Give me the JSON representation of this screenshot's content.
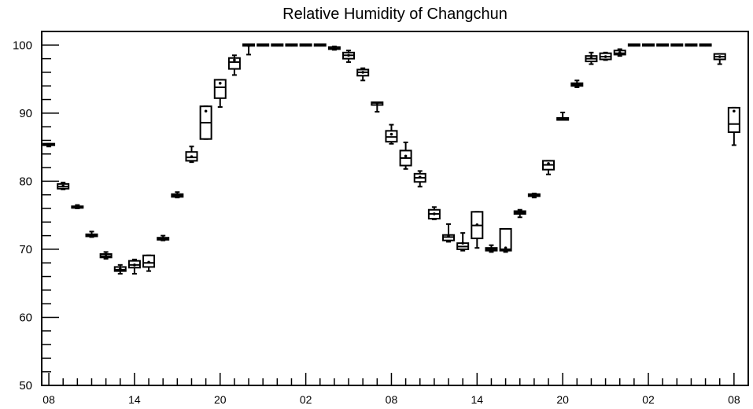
{
  "chart_data": {
    "type": "box",
    "title": "Relative Humidity of Changchun",
    "xlabel": "",
    "ylabel": "",
    "ylim": [
      50,
      102
    ],
    "y_ticks": [
      50,
      60,
      70,
      80,
      90,
      100
    ],
    "x_tick_labels": [
      "08",
      "14",
      "20",
      "02",
      "08",
      "14",
      "20",
      "02",
      "08"
    ],
    "x_tick_hours": [
      0,
      6,
      12,
      18,
      24,
      30,
      36,
      42,
      48
    ],
    "grid": false,
    "legend": "none",
    "boxes": [
      {
        "hour": 0,
        "whisker_low": 85.1,
        "q1": 85.2,
        "median": 85.3,
        "q3": 85.4,
        "whisker_high": 85.5,
        "mean": 85.3
      },
      {
        "hour": 1,
        "whisker_low": 78.8,
        "q1": 78.9,
        "median": 79.2,
        "q3": 79.6,
        "whisker_high": 79.8,
        "mean": 79.3
      },
      {
        "hour": 2,
        "whisker_low": 76.0,
        "q1": 76.0,
        "median": 76.1,
        "q3": 76.2,
        "whisker_high": 76.5,
        "mean": 76.1
      },
      {
        "hour": 3,
        "whisker_low": 71.8,
        "q1": 71.9,
        "median": 72.0,
        "q3": 72.2,
        "whisker_high": 72.6,
        "mean": 72.1
      },
      {
        "hour": 4,
        "whisker_low": 68.6,
        "q1": 68.8,
        "median": 69.0,
        "q3": 69.3,
        "whisker_high": 69.6,
        "mean": 69.0
      },
      {
        "hour": 5,
        "whisker_low": 66.4,
        "q1": 66.8,
        "median": 67.0,
        "q3": 67.4,
        "whisker_high": 67.7,
        "mean": 67.1
      },
      {
        "hour": 6,
        "whisker_low": 66.4,
        "q1": 67.3,
        "median": 67.7,
        "q3": 68.3,
        "whisker_high": 68.5,
        "mean": 67.7
      },
      {
        "hour": 7,
        "whisker_low": 66.8,
        "q1": 67.4,
        "median": 68.0,
        "q3": 69.1,
        "whisker_high": 69.1,
        "mean": 68.1
      },
      {
        "hour": 8,
        "whisker_low": 71.3,
        "q1": 71.4,
        "median": 71.6,
        "q3": 71.7,
        "whisker_high": 72.0,
        "mean": 71.6
      },
      {
        "hour": 9,
        "whisker_low": 77.6,
        "q1": 77.7,
        "median": 77.9,
        "q3": 78.1,
        "whisker_high": 78.4,
        "mean": 78.0
      },
      {
        "hour": 10,
        "whisker_low": 82.8,
        "q1": 83.0,
        "median": 83.5,
        "q3": 84.3,
        "whisker_high": 85.1,
        "mean": 83.6
      },
      {
        "hour": 11,
        "whisker_low": 86.2,
        "q1": 86.2,
        "median": 88.6,
        "q3": 91.0,
        "whisker_high": 91.0,
        "mean": 90.3
      },
      {
        "hour": 12,
        "whisker_low": 90.9,
        "q1": 92.2,
        "median": 93.8,
        "q3": 94.9,
        "whisker_high": 94.9,
        "mean": 94.4
      },
      {
        "hour": 13,
        "whisker_low": 95.6,
        "q1": 96.5,
        "median": 97.5,
        "q3": 98.1,
        "whisker_high": 98.5,
        "mean": 97.8
      },
      {
        "hour": 14,
        "whisker_low": 98.6,
        "q1": 99.8,
        "median": 100.0,
        "q3": 100.0,
        "whisker_high": 100.0,
        "mean": 99.9
      },
      {
        "hour": 15,
        "whisker_low": 100.0,
        "q1": 100.0,
        "median": 100.0,
        "q3": 100.0,
        "whisker_high": 100.0,
        "mean": 100.0
      },
      {
        "hour": 16,
        "whisker_low": 100.0,
        "q1": 100.0,
        "median": 100.0,
        "q3": 100.0,
        "whisker_high": 100.0,
        "mean": 100.0
      },
      {
        "hour": 17,
        "whisker_low": 100.0,
        "q1": 100.0,
        "median": 100.0,
        "q3": 100.0,
        "whisker_high": 100.0,
        "mean": 100.0
      },
      {
        "hour": 18,
        "whisker_low": 100.0,
        "q1": 100.0,
        "median": 100.0,
        "q3": 100.0,
        "whisker_high": 100.0,
        "mean": 100.0
      },
      {
        "hour": 19,
        "whisker_low": 100.0,
        "q1": 100.0,
        "median": 100.0,
        "q3": 100.0,
        "whisker_high": 100.0,
        "mean": 100.0
      },
      {
        "hour": 20,
        "whisker_low": 99.3,
        "q1": 99.4,
        "median": 99.5,
        "q3": 99.7,
        "whisker_high": 99.8,
        "mean": 99.5
      },
      {
        "hour": 21,
        "whisker_low": 97.5,
        "q1": 98.0,
        "median": 98.5,
        "q3": 98.9,
        "whisker_high": 99.2,
        "mean": 98.5
      },
      {
        "hour": 22,
        "whisker_low": 94.8,
        "q1": 95.5,
        "median": 96.0,
        "q3": 96.4,
        "whisker_high": 96.6,
        "mean": 96.0
      },
      {
        "hour": 23,
        "whisker_low": 90.2,
        "q1": 91.2,
        "median": 91.5,
        "q3": 91.6,
        "whisker_high": 91.6,
        "mean": 91.5
      },
      {
        "hour": 24,
        "whisker_low": 85.5,
        "q1": 85.8,
        "median": 86.5,
        "q3": 87.4,
        "whisker_high": 88.3,
        "mean": 86.9
      },
      {
        "hour": 25,
        "whisker_low": 81.8,
        "q1": 82.3,
        "median": 83.4,
        "q3": 84.5,
        "whisker_high": 85.7,
        "mean": 83.7
      },
      {
        "hour": 26,
        "whisker_low": 79.2,
        "q1": 79.9,
        "median": 80.5,
        "q3": 81.1,
        "whisker_high": 81.5,
        "mean": 80.6
      },
      {
        "hour": 27,
        "whisker_low": 74.4,
        "q1": 74.5,
        "median": 75.2,
        "q3": 75.8,
        "whisker_high": 76.2,
        "mean": 75.2
      },
      {
        "hour": 28,
        "whisker_low": 71.1,
        "q1": 71.3,
        "median": 71.8,
        "q3": 72.1,
        "whisker_high": 73.7,
        "mean": 71.9
      },
      {
        "hour": 29,
        "whisker_low": 69.8,
        "q1": 70.0,
        "median": 70.4,
        "q3": 70.9,
        "whisker_high": 72.4,
        "mean": 70.9
      },
      {
        "hour": 30,
        "whisker_low": 70.2,
        "q1": 71.6,
        "median": 73.5,
        "q3": 75.5,
        "whisker_high": 75.5,
        "mean": 73.6
      },
      {
        "hour": 31,
        "whisker_low": 69.6,
        "q1": 69.8,
        "median": 70.0,
        "q3": 70.2,
        "whisker_high": 70.6,
        "mean": 70.0
      },
      {
        "hour": 32,
        "whisker_low": 69.6,
        "q1": 69.8,
        "median": 70.0,
        "q3": 73.0,
        "whisker_high": 73.0,
        "mean": 70.2
      },
      {
        "hour": 33,
        "whisker_low": 74.7,
        "q1": 75.2,
        "median": 75.4,
        "q3": 75.6,
        "whisker_high": 75.8,
        "mean": 75.4
      },
      {
        "hour": 34,
        "whisker_low": 77.6,
        "q1": 77.8,
        "median": 78.0,
        "q3": 78.1,
        "whisker_high": 78.2,
        "mean": 78.0
      },
      {
        "hour": 35,
        "whisker_low": 81.0,
        "q1": 81.7,
        "median": 82.4,
        "q3": 83.0,
        "whisker_high": 83.0,
        "mean": 82.6
      },
      {
        "hour": 36,
        "whisker_low": 89.0,
        "q1": 89.0,
        "median": 89.1,
        "q3": 89.3,
        "whisker_high": 90.1,
        "mean": 89.2
      },
      {
        "hour": 37,
        "whisker_low": 93.8,
        "q1": 94.0,
        "median": 94.2,
        "q3": 94.4,
        "whisker_high": 94.8,
        "mean": 94.3
      },
      {
        "hour": 38,
        "whisker_low": 97.2,
        "q1": 97.6,
        "median": 98.0,
        "q3": 98.4,
        "whisker_high": 98.9,
        "mean": 98.1
      },
      {
        "hour": 39,
        "whisker_low": 97.8,
        "q1": 97.9,
        "median": 98.3,
        "q3": 98.8,
        "whisker_high": 98.9,
        "mean": 98.3
      },
      {
        "hour": 40,
        "whisker_low": 98.4,
        "q1": 98.6,
        "median": 98.8,
        "q3": 99.2,
        "whisker_high": 99.4,
        "mean": 98.9
      },
      {
        "hour": 41,
        "whisker_low": 100.0,
        "q1": 100.0,
        "median": 100.0,
        "q3": 100.0,
        "whisker_high": 100.0,
        "mean": 100.0
      },
      {
        "hour": 42,
        "whisker_low": 100.0,
        "q1": 100.0,
        "median": 100.0,
        "q3": 100.0,
        "whisker_high": 100.0,
        "mean": 100.0
      },
      {
        "hour": 43,
        "whisker_low": 100.0,
        "q1": 100.0,
        "median": 100.0,
        "q3": 100.0,
        "whisker_high": 100.0,
        "mean": 100.0
      },
      {
        "hour": 44,
        "whisker_low": 100.0,
        "q1": 100.0,
        "median": 100.0,
        "q3": 100.0,
        "whisker_high": 100.0,
        "mean": 100.0
      },
      {
        "hour": 45,
        "whisker_low": 100.0,
        "q1": 100.0,
        "median": 100.0,
        "q3": 100.0,
        "whisker_high": 100.0,
        "mean": 100.0
      },
      {
        "hour": 46,
        "whisker_low": 100.0,
        "q1": 100.0,
        "median": 100.0,
        "q3": 100.0,
        "whisker_high": 100.0,
        "mean": 100.0
      },
      {
        "hour": 47,
        "whisker_low": 97.2,
        "q1": 97.9,
        "median": 98.3,
        "q3": 98.7,
        "whisker_high": 98.7,
        "mean": 98.3
      },
      {
        "hour": 48,
        "whisker_low": 85.3,
        "q1": 87.2,
        "median": 88.4,
        "q3": 90.8,
        "whisker_high": 90.8,
        "mean": 90.3
      }
    ]
  }
}
